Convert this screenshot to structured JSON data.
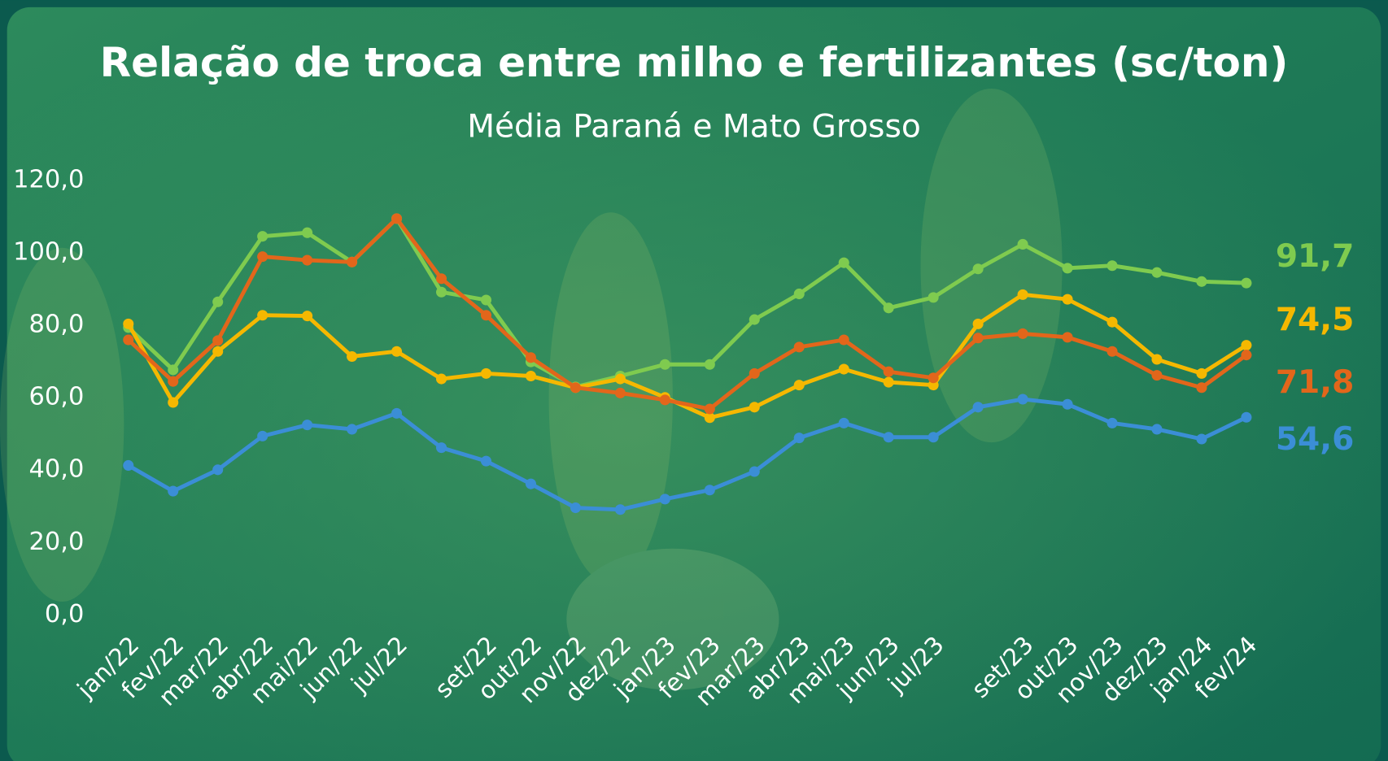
{
  "chart_data": {
    "type": "line",
    "title": "Relação de troca entre milho e fertilizantes (sc/ton)",
    "subtitle": "Média Paraná e Mato Grosso",
    "categories": [
      "jan/22",
      "fev/22",
      "mar/22",
      "abr/22",
      "mai/22",
      "jun/22",
      "jul/22",
      null,
      "set/22",
      "out/22",
      "nov/22",
      "dez/22",
      "jan/23",
      "fev/23",
      "mar/23",
      "abr/23",
      "mai/23",
      "jun/23",
      "jul/23",
      null,
      "set/23",
      "out/23",
      "nov/23",
      "dez/23",
      "jan/24",
      "fev/24"
    ],
    "ylim": [
      0,
      120
    ],
    "yticks": [
      {
        "value": 0,
        "label": "0,0"
      },
      {
        "value": 20,
        "label": "20,0"
      },
      {
        "value": 40,
        "label": "40,0"
      },
      {
        "value": 60,
        "label": "60,0"
      },
      {
        "value": 80,
        "label": "80,0"
      },
      {
        "value": 100,
        "label": "100,0"
      },
      {
        "value": 120,
        "label": "120,0"
      }
    ],
    "grid": false,
    "series": [
      {
        "color": "#7fcb4f",
        "values": [
          79.4,
          67.7,
          86.5,
          104.6,
          105.6,
          97.5,
          109.5,
          89.2,
          87.0,
          69.9,
          63.0,
          66.0,
          69.2,
          69.2,
          81.6,
          88.7,
          97.3,
          84.8,
          87.7,
          95.6,
          102.4,
          95.8,
          96.5,
          94.6,
          92.1,
          91.7
        ],
        "value_labels": [
          null,
          null,
          null,
          null,
          null,
          null,
          null,
          null,
          null,
          null,
          null,
          null,
          null,
          null,
          null,
          null,
          null,
          null,
          null,
          null,
          null,
          null,
          null,
          null,
          null,
          "91,7"
        ]
      },
      {
        "color": "#f5b800",
        "values": [
          80.4,
          58.7,
          72.8,
          82.8,
          82.6,
          71.4,
          72.8,
          65.2,
          66.7,
          66.0,
          62.8,
          65.2,
          60.1,
          54.5,
          57.4,
          63.5,
          67.9,
          64.3,
          63.5,
          80.4,
          88.5,
          87.2,
          80.9,
          70.6,
          66.7,
          74.5
        ],
        "value_labels": [
          null,
          null,
          null,
          null,
          null,
          null,
          null,
          null,
          null,
          null,
          null,
          null,
          null,
          null,
          null,
          null,
          null,
          null,
          null,
          null,
          null,
          null,
          null,
          null,
          null,
          "74,5"
        ]
      },
      {
        "color": "#e2661b",
        "values": [
          76.0,
          64.5,
          75.8,
          99.0,
          98.0,
          97.5,
          109.5,
          92.9,
          82.8,
          71.1,
          62.8,
          61.3,
          59.4,
          56.9,
          66.7,
          74.0,
          76.0,
          67.2,
          65.5,
          76.5,
          77.7,
          76.7,
          72.8,
          66.2,
          62.8,
          71.8
        ],
        "value_labels": [
          null,
          null,
          null,
          null,
          null,
          null,
          null,
          null,
          null,
          null,
          null,
          null,
          null,
          null,
          null,
          null,
          null,
          null,
          null,
          null,
          null,
          null,
          null,
          null,
          null,
          "71,8"
        ]
      },
      {
        "color": "#3b8ed6",
        "values": [
          41.3,
          34.2,
          40.1,
          49.4,
          52.5,
          51.3,
          55.7,
          46.2,
          42.5,
          36.2,
          29.6,
          29.1,
          32.0,
          34.5,
          39.6,
          48.9,
          53.0,
          49.1,
          49.1,
          57.4,
          59.6,
          58.2,
          53.0,
          51.3,
          48.6,
          54.6
        ],
        "value_labels": [
          null,
          null,
          null,
          null,
          null,
          null,
          null,
          null,
          null,
          null,
          null,
          null,
          null,
          null,
          null,
          null,
          null,
          null,
          null,
          null,
          null,
          null,
          null,
          null,
          null,
          "54,6"
        ]
      }
    ]
  }
}
